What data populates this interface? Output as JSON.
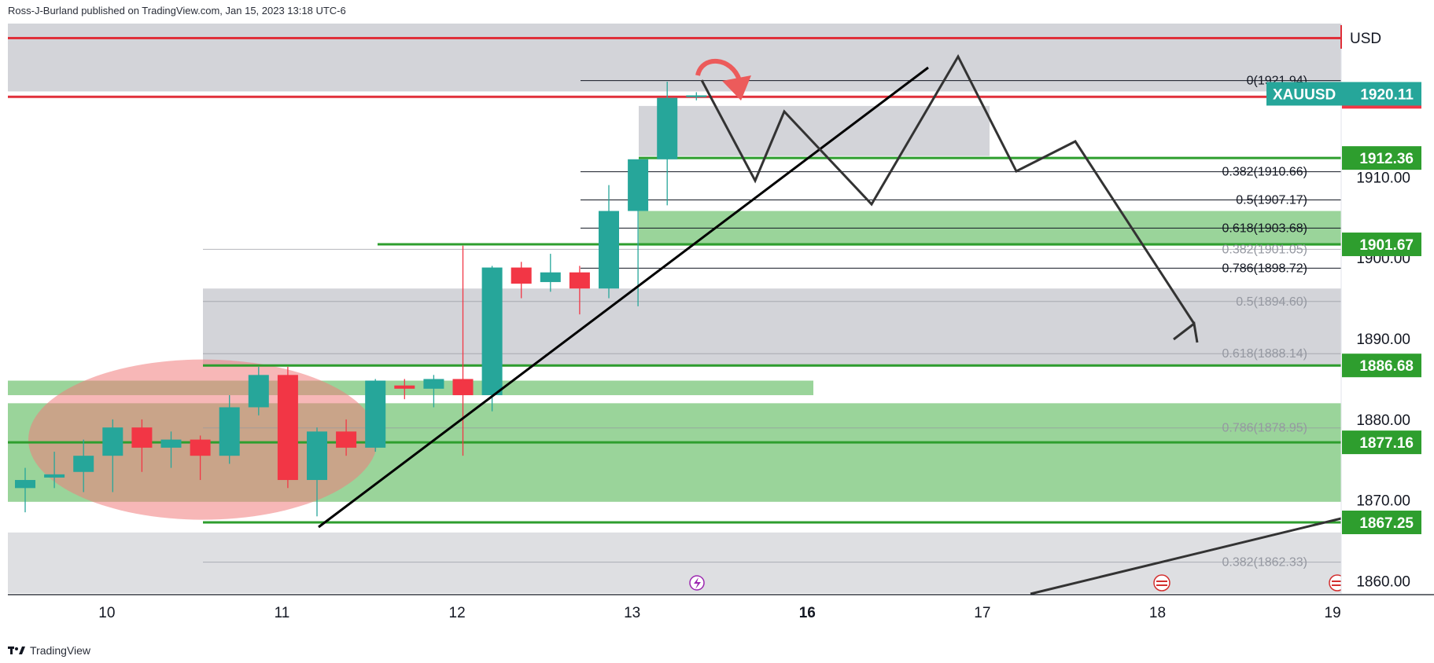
{
  "header": {
    "publisher_line": "Ross-J-Burland published on TradingView.com, Jan 15, 2023 13:18 UTC-6"
  },
  "footer": {
    "brand": "TradingView"
  },
  "chart_data": {
    "type": "candlestick",
    "symbol": "XAUUSD",
    "currency": "USD",
    "ylim": [
      1858.5,
      1929.0
    ],
    "y_ticks": [
      {
        "value": 1910,
        "label": "1910.00"
      },
      {
        "value": 1900,
        "label": "1900.00"
      },
      {
        "value": 1890,
        "label": "1890.00"
      },
      {
        "value": 1880,
        "label": "1880.00"
      },
      {
        "value": 1870,
        "label": "1870.00"
      },
      {
        "value": 1860,
        "label": "1860.00"
      }
    ],
    "x_ticks": [
      {
        "label": "10",
        "slot": 2.8,
        "bold": false
      },
      {
        "label": "11",
        "slot": 8.8,
        "bold": false
      },
      {
        "label": "12",
        "slot": 14.8,
        "bold": false
      },
      {
        "label": "13",
        "slot": 20.8,
        "bold": false
      },
      {
        "label": "16",
        "slot": 26.8,
        "bold": true
      },
      {
        "label": "17",
        "slot": 32.8,
        "bold": false
      },
      {
        "label": "18",
        "slot": 38.8,
        "bold": false
      },
      {
        "label": "19",
        "slot": 44.8,
        "bold": false
      }
    ],
    "candles": [
      {
        "o": 1871.5,
        "h": 1874.0,
        "l": 1868.5,
        "c": 1872.5
      },
      {
        "o": 1872.8,
        "h": 1876.0,
        "l": 1871.5,
        "c": 1873.2
      },
      {
        "o": 1873.5,
        "h": 1877.5,
        "l": 1871.0,
        "c": 1875.5
      },
      {
        "o": 1875.5,
        "h": 1880.0,
        "l": 1871.0,
        "c": 1879.0
      },
      {
        "o": 1879.0,
        "h": 1880.0,
        "l": 1873.5,
        "c": 1876.5
      },
      {
        "o": 1876.5,
        "h": 1878.5,
        "l": 1874.0,
        "c": 1877.5
      },
      {
        "o": 1877.5,
        "h": 1878.0,
        "l": 1872.5,
        "c": 1875.5
      },
      {
        "o": 1875.5,
        "h": 1883.0,
        "l": 1874.5,
        "c": 1881.5
      },
      {
        "o": 1881.5,
        "h": 1886.5,
        "l": 1880.5,
        "c": 1885.5
      },
      {
        "o": 1885.5,
        "h": 1886.5,
        "l": 1871.5,
        "c": 1872.5
      },
      {
        "o": 1872.5,
        "h": 1879.0,
        "l": 1868.0,
        "c": 1878.5
      },
      {
        "o": 1878.5,
        "h": 1880.0,
        "l": 1875.5,
        "c": 1876.5
      },
      {
        "o": 1876.5,
        "h": 1885.0,
        "l": 1876.0,
        "c": 1884.8
      },
      {
        "o": 1884.2,
        "h": 1885.0,
        "l": 1882.5,
        "c": 1883.8
      },
      {
        "o": 1883.8,
        "h": 1885.5,
        "l": 1881.5,
        "c": 1885.0
      },
      {
        "o": 1885.0,
        "h": 1901.5,
        "l": 1875.5,
        "c": 1883.0
      },
      {
        "o": 1883.0,
        "h": 1899.0,
        "l": 1881.0,
        "c": 1898.8
      },
      {
        "o": 1898.8,
        "h": 1899.5,
        "l": 1895.0,
        "c": 1896.8
      },
      {
        "o": 1897.0,
        "h": 1900.5,
        "l": 1895.8,
        "c": 1898.2
      },
      {
        "o": 1898.2,
        "h": 1899.0,
        "l": 1893.0,
        "c": 1896.2
      },
      {
        "o": 1896.2,
        "h": 1909.0,
        "l": 1895.0,
        "c": 1905.8
      },
      {
        "o": 1905.8,
        "h": 1912.0,
        "l": 1894.0,
        "c": 1912.2
      },
      {
        "o": 1912.2,
        "h": 1921.8,
        "l": 1906.5,
        "c": 1919.8
      },
      {
        "o": 1919.9,
        "h": 1920.5,
        "l": 1919.5,
        "c": 1920.11
      }
    ],
    "price_tags": [
      {
        "value": 1919.93,
        "label": "1919.93",
        "color": "#f23645"
      },
      {
        "value": 1912.36,
        "label": "1912.36",
        "color": "#2e9e2e"
      },
      {
        "value": 1901.67,
        "label": "1901.67",
        "color": "#2e9e2e"
      },
      {
        "value": 1886.68,
        "label": "1886.68",
        "color": "#2e9e2e"
      },
      {
        "value": 1877.16,
        "label": "1877.16",
        "color": "#2e9e2e"
      },
      {
        "value": 1867.25,
        "label": "1867.25",
        "color": "#2e9e2e"
      }
    ],
    "last_price": {
      "symbol": "XAUUSD",
      "value": 1920.11,
      "label": "1920.11",
      "color": "#26a69a"
    },
    "fib_primary": [
      {
        "value": 1921.94,
        "label": "0(1921.94)"
      },
      {
        "value": 1910.66,
        "label": "0.382(1910.66)"
      },
      {
        "value": 1907.17,
        "label": "0.5(1907.17)"
      },
      {
        "value": 1903.68,
        "label": "0.618(1903.68)"
      },
      {
        "value": 1898.72,
        "label": "0.786(1898.72)"
      }
    ],
    "fib_secondary": [
      {
        "value": 1901.05,
        "label": "0.382(1901.05)"
      },
      {
        "value": 1894.6,
        "label": "0.5(1894.60)"
      },
      {
        "value": 1888.14,
        "label": "0.618(1888.14)"
      },
      {
        "value": 1878.95,
        "label": "0.786(1878.95)"
      },
      {
        "value": 1862.33,
        "label": "0.382(1862.33)"
      }
    ],
    "colors": {
      "bull": "#26a69a",
      "bear": "#f23645",
      "resistance": "#e0303a",
      "support": "#2e9e2e",
      "zone_green": "#8fcf8f",
      "zone_grey": "#c8c9cf"
    }
  }
}
